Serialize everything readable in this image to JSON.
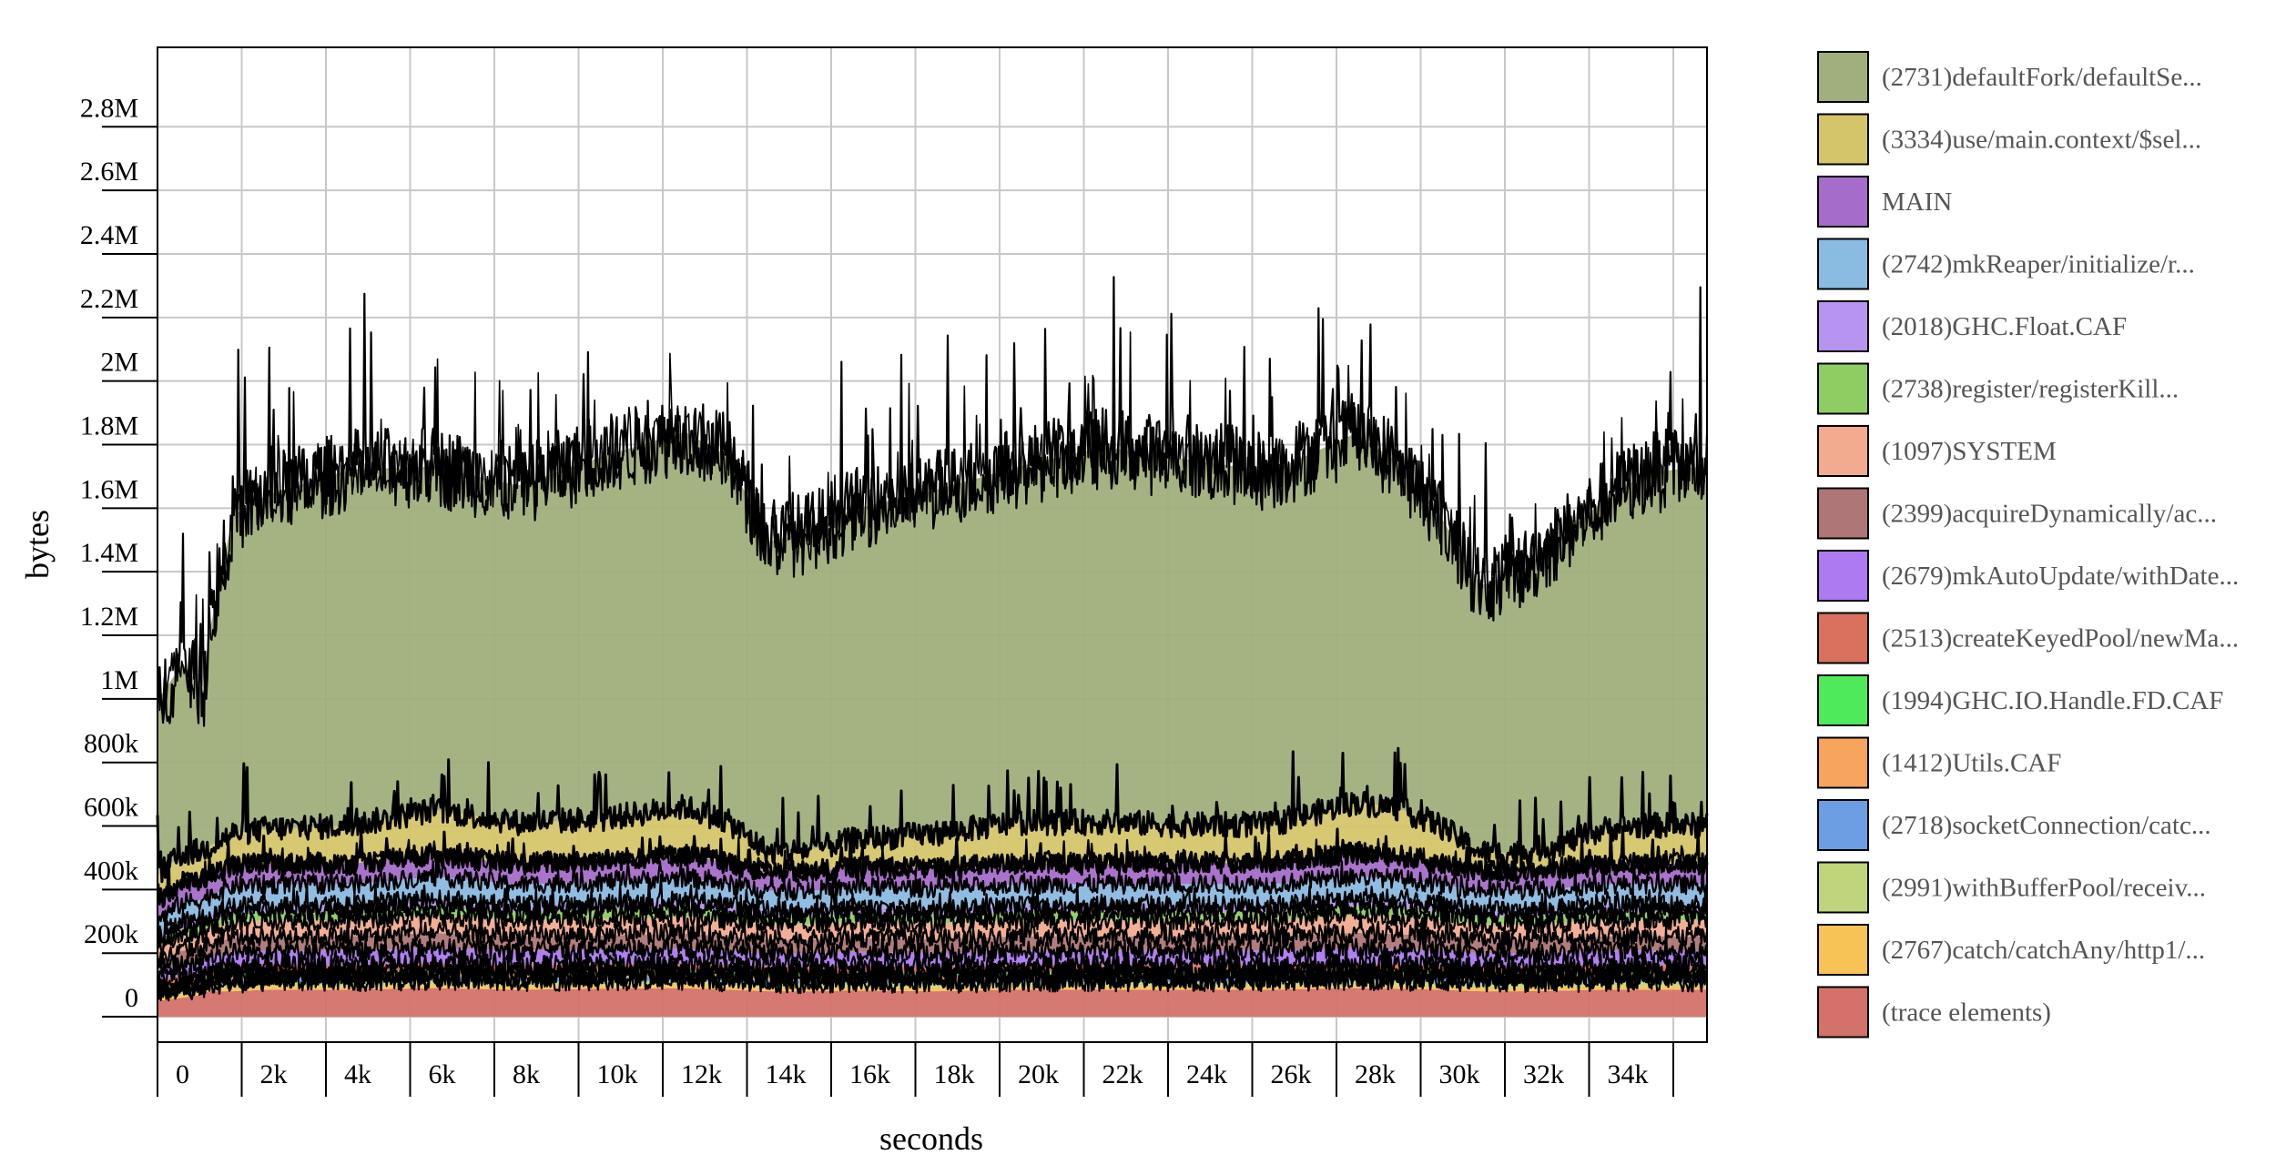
{
  "chart_data": {
    "type": "area",
    "stacked": true,
    "xlabel": "seconds",
    "ylabel": "bytes",
    "xlim": [
      -600,
      36400
    ],
    "ylim": [
      -80000,
      3050000
    ],
    "x_ticks": [
      0,
      2000,
      4000,
      6000,
      8000,
      10000,
      12000,
      14000,
      16000,
      18000,
      20000,
      22000,
      24000,
      26000,
      28000,
      30000,
      32000,
      34000
    ],
    "x_tick_labels": [
      "0",
      "2k",
      "4k",
      "6k",
      "8k",
      "10k",
      "12k",
      "14k",
      "16k",
      "18k",
      "20k",
      "22k",
      "24k",
      "26k",
      "28k",
      "30k",
      "32k",
      "34k"
    ],
    "y_ticks": [
      0,
      200000,
      400000,
      600000,
      800000,
      1000000,
      1200000,
      1400000,
      1600000,
      1800000,
      2000000,
      2200000,
      2400000,
      2600000,
      2800000
    ],
    "y_tick_labels": [
      "0",
      "200k",
      "400k",
      "600k",
      "800k",
      "1M",
      "1.2M",
      "1.4M",
      "1.6M",
      "1.8M",
      "2M",
      "2.2M",
      "2.4M",
      "2.6M",
      "2.8M"
    ],
    "grid": true,
    "legend_position": "right",
    "x": [
      -600,
      0,
      500,
      600,
      1200,
      2000,
      4000,
      6000,
      8000,
      10000,
      12000,
      13000,
      14000,
      15000,
      16000,
      18000,
      20000,
      22000,
      24000,
      26000,
      28000,
      29000,
      30000,
      31000,
      32000,
      33000,
      34000,
      35000,
      36400
    ],
    "series": [
      {
        "name": "(trace elements)",
        "color": "#d3726a",
        "values": [
          50000,
          60000,
          70000,
          80000,
          80000,
          85000,
          85000,
          90000,
          85000,
          88000,
          90000,
          85000,
          80000,
          80000,
          82000,
          80000,
          85000,
          85000,
          85000,
          85000,
          90000,
          88000,
          85000,
          80000,
          80000,
          82000,
          85000,
          85000,
          85000
        ]
      },
      {
        "name": "(2767)catch/catchAny/http1/...",
        "color": "#f7c356",
        "values": [
          10000,
          10000,
          10000,
          10000,
          12000,
          12000,
          12000,
          12000,
          12000,
          12000,
          12000,
          12000,
          12000,
          12000,
          12000,
          12000,
          12000,
          12000,
          12000,
          12000,
          12000,
          12000,
          12000,
          12000,
          12000,
          12000,
          12000,
          12000,
          12000
        ]
      },
      {
        "name": "(2991)withBufferPool/receiv...",
        "color": "#c0d47c",
        "values": [
          10000,
          10000,
          10000,
          10000,
          12000,
          12000,
          12000,
          12000,
          12000,
          12000,
          12000,
          12000,
          12000,
          12000,
          12000,
          12000,
          12000,
          12000,
          12000,
          12000,
          12000,
          12000,
          12000,
          12000,
          12000,
          12000,
          12000,
          12000,
          12000
        ]
      },
      {
        "name": "(2718)socketConnection/catc...",
        "color": "#6b9ee3",
        "values": [
          10000,
          10000,
          10000,
          10000,
          12000,
          12000,
          12000,
          12000,
          12000,
          12000,
          12000,
          12000,
          12000,
          12000,
          12000,
          12000,
          12000,
          12000,
          12000,
          12000,
          12000,
          12000,
          12000,
          12000,
          12000,
          12000,
          12000,
          12000,
          12000
        ]
      },
      {
        "name": "(1412)Utils.CAF",
        "color": "#f7a45c",
        "values": [
          10000,
          10000,
          10000,
          10000,
          12000,
          12000,
          12000,
          12000,
          12000,
          12000,
          12000,
          12000,
          12000,
          12000,
          12000,
          12000,
          12000,
          12000,
          12000,
          12000,
          12000,
          12000,
          12000,
          12000,
          12000,
          12000,
          12000,
          12000,
          12000
        ]
      },
      {
        "name": "(1994)GHC.IO.Handle.FD.CAF",
        "color": "#4eea5c",
        "values": [
          8000,
          8000,
          8000,
          8000,
          8000,
          8000,
          8000,
          8000,
          8000,
          8000,
          8000,
          8000,
          8000,
          8000,
          8000,
          8000,
          8000,
          8000,
          8000,
          8000,
          8000,
          8000,
          8000,
          8000,
          8000,
          8000,
          8000,
          8000,
          8000
        ]
      },
      {
        "name": "(2513)createKeyedPool/newMa...",
        "color": "#d9715e",
        "values": [
          20000,
          20000,
          20000,
          20000,
          22000,
          22000,
          22000,
          22000,
          22000,
          22000,
          22000,
          22000,
          22000,
          22000,
          22000,
          22000,
          22000,
          22000,
          22000,
          22000,
          22000,
          22000,
          22000,
          22000,
          22000,
          22000,
          22000,
          22000,
          22000
        ]
      },
      {
        "name": "(2679)mkAutoUpdate/withDate...",
        "color": "#ad7af2",
        "values": [
          30000,
          40000,
          40000,
          40000,
          45000,
          45000,
          45000,
          48000,
          45000,
          45000,
          47000,
          45000,
          42000,
          42000,
          44000,
          43000,
          45000,
          45000,
          45000,
          45000,
          48000,
          47000,
          45000,
          42000,
          42000,
          43000,
          45000,
          45000,
          45000
        ]
      },
      {
        "name": "(2399)acquireDynamically/ac...",
        "color": "#ae7676",
        "values": [
          30000,
          40000,
          40000,
          40000,
          45000,
          45000,
          45000,
          48000,
          45000,
          45000,
          47000,
          45000,
          42000,
          42000,
          44000,
          43000,
          45000,
          45000,
          45000,
          45000,
          48000,
          47000,
          45000,
          42000,
          42000,
          43000,
          45000,
          45000,
          45000
        ]
      },
      {
        "name": "(1097)SYSTEM",
        "color": "#f2ab8f",
        "values": [
          40000,
          45000,
          45000,
          45000,
          50000,
          50000,
          50000,
          55000,
          50000,
          52000,
          54000,
          50000,
          48000,
          48000,
          50000,
          50000,
          50000,
          50000,
          50000,
          50000,
          55000,
          54000,
          50000,
          48000,
          48000,
          50000,
          50000,
          50000,
          50000
        ]
      },
      {
        "name": "(2738)register/registerKill...",
        "color": "#8ecd62",
        "values": [
          20000,
          25000,
          25000,
          25000,
          28000,
          28000,
          28000,
          30000,
          28000,
          28000,
          30000,
          28000,
          26000,
          26000,
          27000,
          27000,
          28000,
          28000,
          28000,
          28000,
          30000,
          30000,
          28000,
          26000,
          26000,
          27000,
          28000,
          28000,
          28000
        ]
      },
      {
        "name": "(2018)GHC.Float.CAF",
        "color": "#b794f0",
        "values": [
          15000,
          20000,
          20000,
          20000,
          20000,
          20000,
          20000,
          22000,
          20000,
          20000,
          22000,
          20000,
          18000,
          18000,
          19000,
          19000,
          20000,
          20000,
          20000,
          20000,
          22000,
          22000,
          20000,
          18000,
          18000,
          19000,
          20000,
          20000,
          20000
        ]
      },
      {
        "name": "(2742)mkReaper/initialize/r...",
        "color": "#8abbe0",
        "values": [
          50000,
          60000,
          60000,
          60000,
          65000,
          65000,
          65000,
          70000,
          65000,
          68000,
          70000,
          66000,
          62000,
          62000,
          64000,
          64000,
          65000,
          65000,
          66000,
          66000,
          70000,
          69000,
          66000,
          62000,
          62000,
          63000,
          65000,
          65000,
          65000
        ]
      },
      {
        "name": "MAIN",
        "color": "#a56dc9",
        "values": [
          60000,
          65000,
          65000,
          65000,
          65000,
          65000,
          65000,
          70000,
          65000,
          68000,
          72000,
          68000,
          60000,
          60000,
          63000,
          64000,
          66000,
          66000,
          66000,
          68000,
          74000,
          72000,
          66000,
          60000,
          60000,
          63000,
          66000,
          66000,
          66000
        ]
      },
      {
        "name": "(3334)use/main.context/$sel...",
        "color": "#d5c56a",
        "values": [
          80000,
          90000,
          90000,
          90000,
          100000,
          110000,
          120000,
          140000,
          130000,
          130000,
          150000,
          130000,
          60000,
          70000,
          85000,
          110000,
          130000,
          130000,
          120000,
          120000,
          160000,
          150000,
          120000,
          60000,
          60000,
          80000,
          110000,
          120000,
          120000
        ]
      },
      {
        "name": "(2731)defaultFork/defaultSe...",
        "color": "#a0af7c",
        "values": [
          550000,
          600000,
          500000,
          650000,
          1000000,
          1050000,
          1120000,
          1080000,
          1060000,
          1140000,
          1180000,
          1150000,
          980000,
          1000000,
          1040000,
          1080000,
          1120000,
          1180000,
          1150000,
          1110000,
          1160000,
          1090000,
          980000,
          840000,
          890000,
          970000,
          1040000,
          1110000,
          1130000
        ]
      }
    ]
  }
}
